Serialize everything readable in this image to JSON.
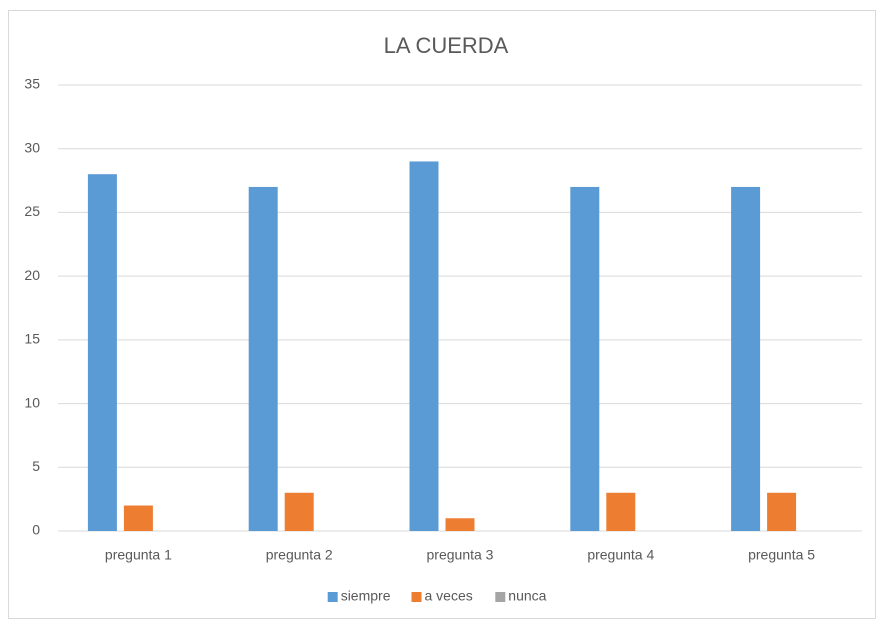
{
  "chart_data": {
    "type": "bar",
    "title": "LA CUERDA",
    "categories": [
      "pregunta 1",
      "pregunta 2",
      "pregunta 3",
      "pregunta 4",
      "pregunta 5"
    ],
    "series": [
      {
        "name": "siempre",
        "color": "#5b9bd5",
        "values": [
          28,
          27,
          29,
          27,
          27
        ]
      },
      {
        "name": "a veces",
        "color": "#ed7d31",
        "values": [
          2,
          3,
          1,
          3,
          3
        ]
      },
      {
        "name": "nunca",
        "color": "#a5a5a5",
        "values": [
          0,
          0,
          0,
          0,
          0
        ]
      }
    ],
    "ylim": [
      0,
      35
    ],
    "yticks": [
      0,
      5,
      10,
      15,
      20,
      25,
      30,
      35
    ],
    "grid": true,
    "legend": "bottom"
  }
}
